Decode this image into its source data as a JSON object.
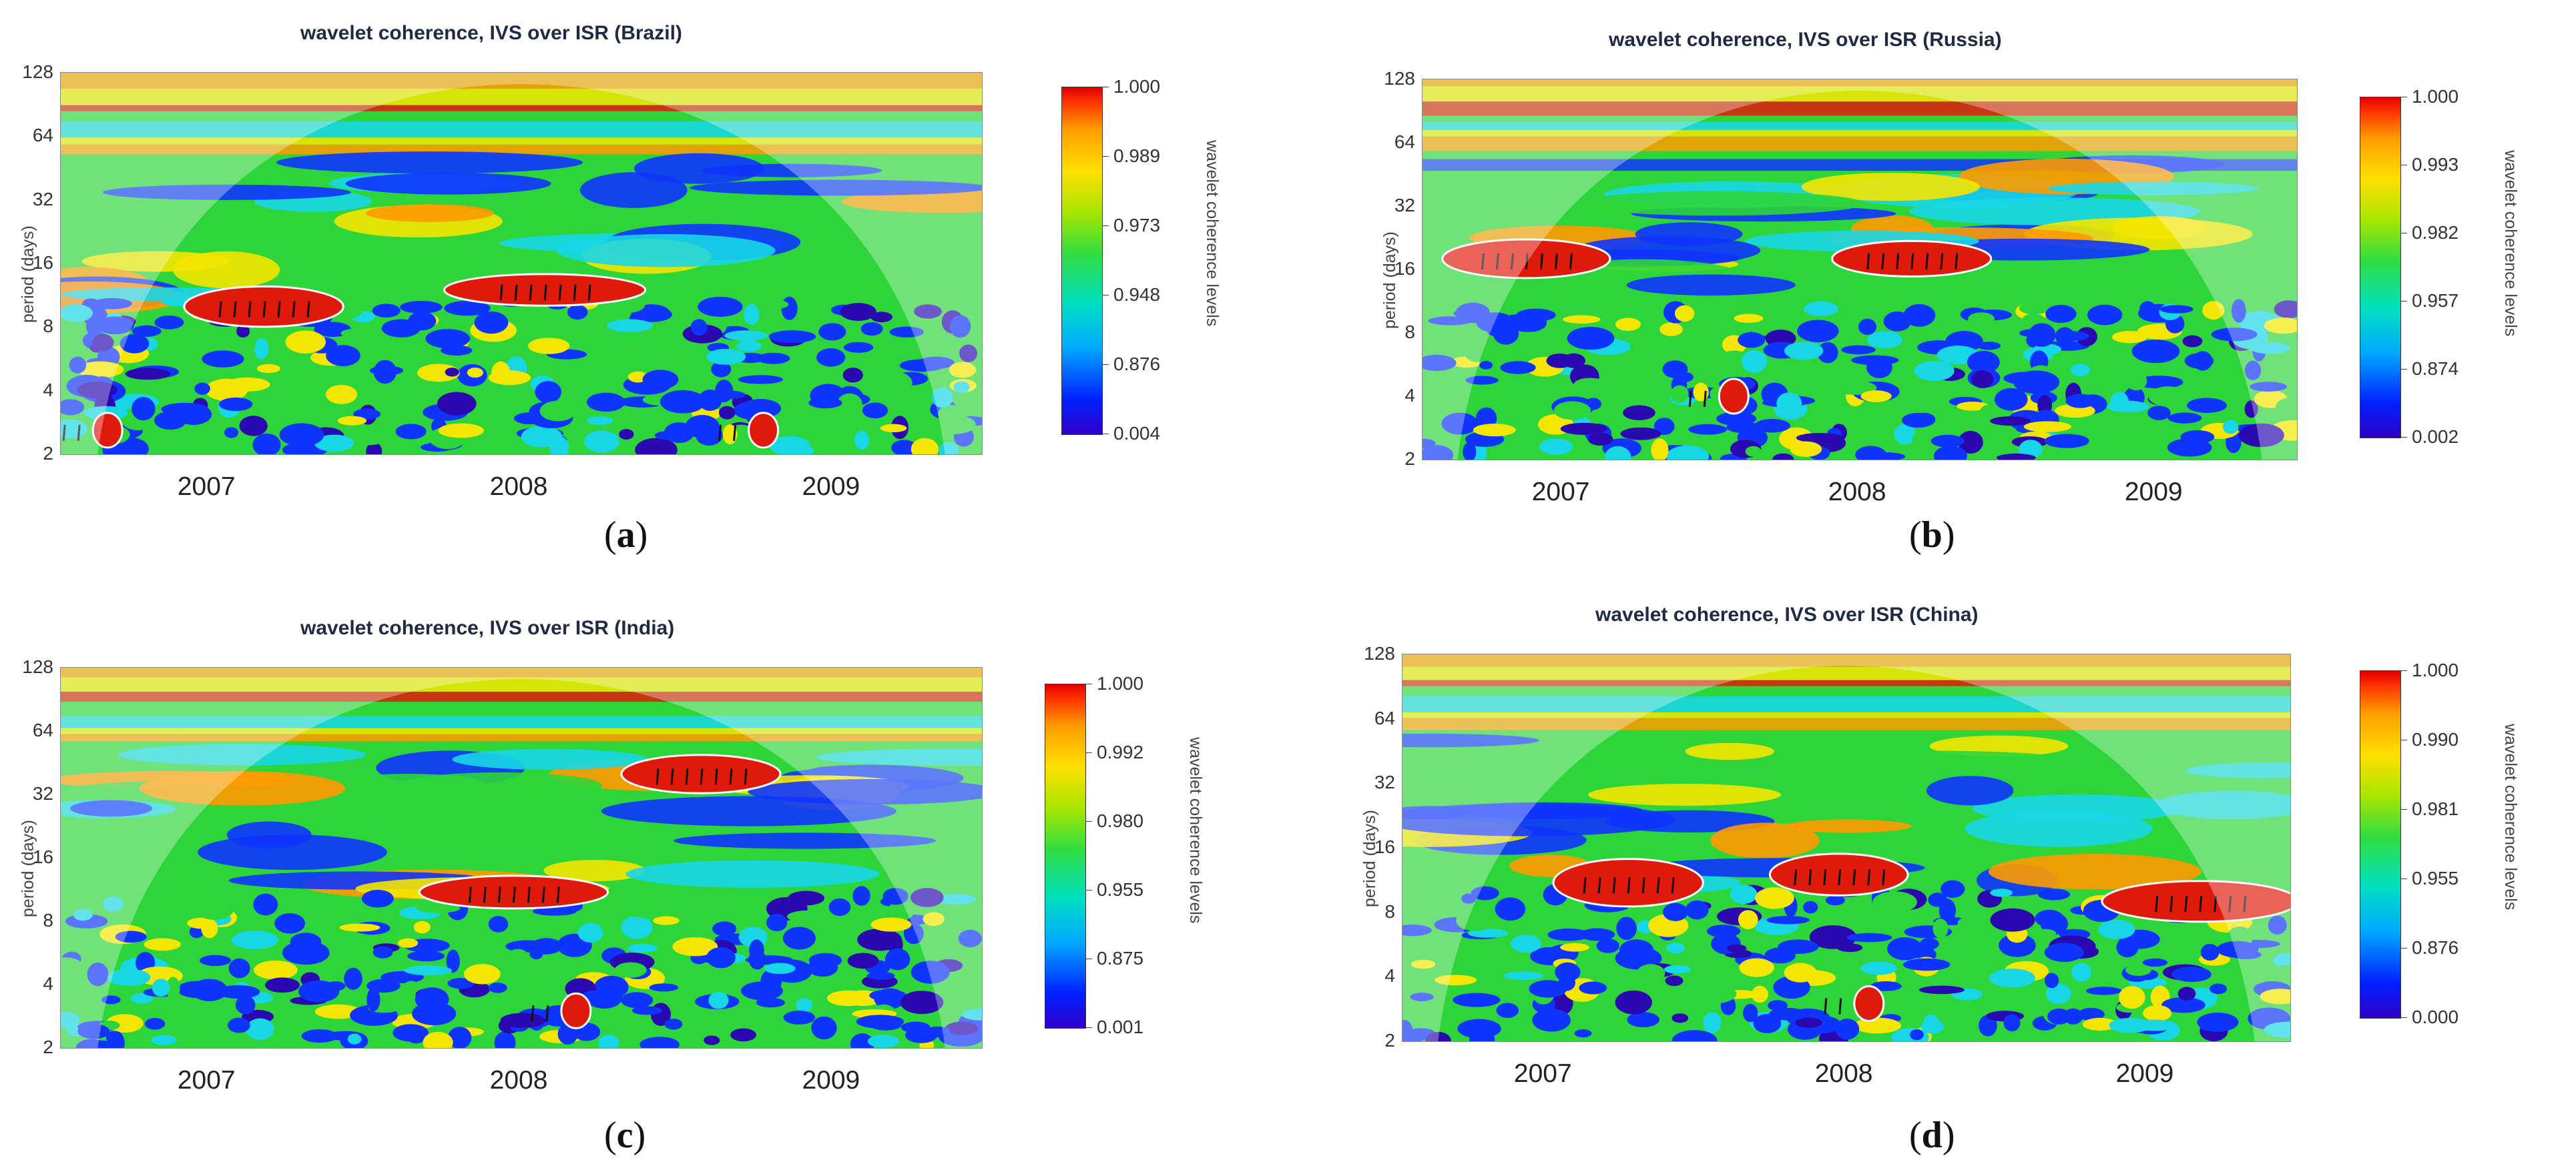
{
  "colors": {
    "red": "#e01a0a",
    "orange": "#ff9a00",
    "yellow": "#f4e600",
    "green": "#2ed53a",
    "cyan": "#18d6e6",
    "blue": "#1034ff",
    "indigo": "#2a0ab0",
    "contour": "#ffffff",
    "arrow": "#111111",
    "background": "#ffffff"
  },
  "chart_data": [
    {
      "type": "heatmap",
      "id": "a",
      "title": "wavelet coherence, IVS over ISR (Brazil)",
      "ylabel": "period (days)",
      "yscale": "log2",
      "ylim": [
        2,
        128
      ],
      "yticks": [
        "2",
        "4",
        "8",
        "16",
        "32",
        "64",
        "128"
      ],
      "xticks": [
        "2007",
        "2008",
        "2009"
      ],
      "colorbar_label": "wavelet coherence levels",
      "colorbar_ticks": [
        "0.004",
        "0.876",
        "0.948",
        "0.973",
        "0.989",
        "1.000"
      ],
      "caption_letter": "a",
      "high_coherence_regions": [
        {
          "time": 2007.2,
          "period": 10
        },
        {
          "time": 2008.1,
          "period": 12
        },
        {
          "time": 2006.7,
          "period": 2.6
        },
        {
          "time": 2008.8,
          "period": 2.6
        }
      ]
    },
    {
      "type": "heatmap",
      "id": "b",
      "title": "wavelet coherence, IVS over ISR (Russia)",
      "ylabel": "period (days)",
      "yscale": "log2",
      "ylim": [
        2,
        128
      ],
      "yticks": [
        "2",
        "4",
        "8",
        "16",
        "32",
        "64",
        "128"
      ],
      "xticks": [
        "2007",
        "2008",
        "2009"
      ],
      "colorbar_label": "wavelet coherence levels",
      "colorbar_ticks": [
        "0.002",
        "0.874",
        "0.957",
        "0.982",
        "0.993",
        "1.000"
      ],
      "caption_letter": "b",
      "high_coherence_regions": [
        {
          "time": 2006.9,
          "period": 18
        },
        {
          "time": 2008.2,
          "period": 18
        },
        {
          "time": 2007.6,
          "period": 4
        }
      ]
    },
    {
      "type": "heatmap",
      "id": "c",
      "title": "wavelet coherence, IVS over ISR (India)",
      "ylabel": "period (days)",
      "yscale": "log2",
      "ylim": [
        2,
        128
      ],
      "yticks": [
        "2",
        "4",
        "8",
        "16",
        "32",
        "64",
        "128"
      ],
      "xticks": [
        "2007",
        "2008",
        "2009"
      ],
      "colorbar_label": "wavelet coherence levels",
      "colorbar_ticks": [
        "0.001",
        "0.875",
        "0.955",
        "0.980",
        "0.992",
        "1.000"
      ],
      "caption_letter": "c",
      "high_coherence_regions": [
        {
          "time": 2008.0,
          "period": 11
        },
        {
          "time": 2008.6,
          "period": 40
        },
        {
          "time": 2008.2,
          "period": 3
        }
      ]
    },
    {
      "type": "heatmap",
      "id": "d",
      "title": "wavelet coherence, IVS over ISR (China)",
      "ylabel": "period (days)",
      "yscale": "log2",
      "ylim": [
        2,
        128
      ],
      "yticks": [
        "2",
        "4",
        "8",
        "16",
        "32",
        "64",
        "128"
      ],
      "xticks": [
        "2007",
        "2008",
        "2009"
      ],
      "colorbar_label": "wavelet coherence levels",
      "colorbar_ticks": [
        "0.000",
        "0.876",
        "0.955",
        "0.981",
        "0.990",
        "1.000"
      ],
      "caption_letter": "d",
      "high_coherence_regions": [
        {
          "time": 2007.3,
          "period": 11
        },
        {
          "time": 2008.0,
          "period": 12
        },
        {
          "time": 2009.2,
          "period": 9
        },
        {
          "time": 2008.1,
          "period": 3
        }
      ]
    }
  ]
}
